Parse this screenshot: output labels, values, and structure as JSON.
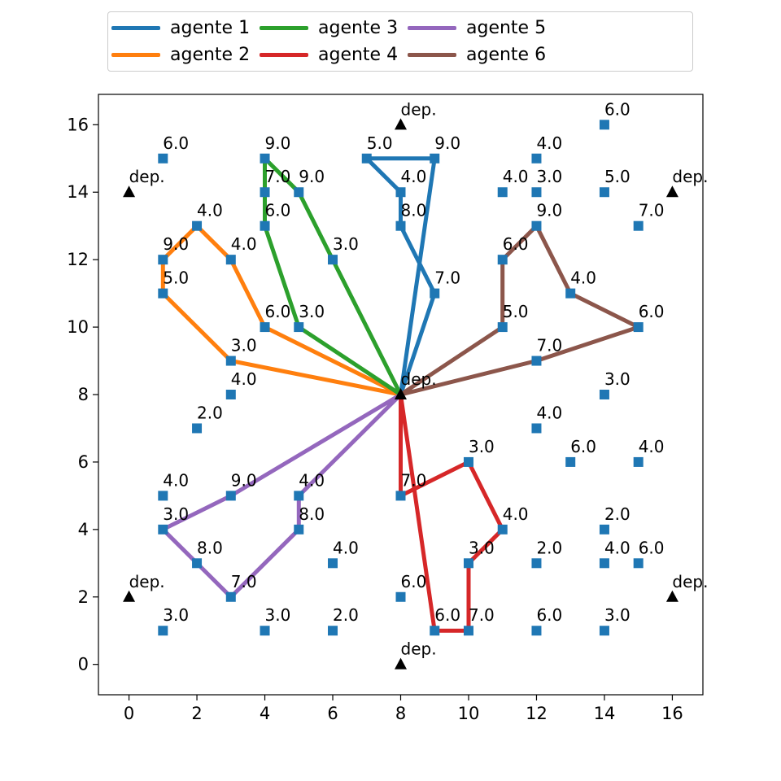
{
  "chart_data": {
    "type": "scatter",
    "title": "",
    "xlabel": "",
    "ylabel": "",
    "xlim": [
      -0.9,
      16.9
    ],
    "ylim": [
      -0.9,
      16.9
    ],
    "x_ticks": [
      0,
      2,
      4,
      6,
      8,
      10,
      12,
      14,
      16
    ],
    "y_ticks": [
      0,
      2,
      4,
      6,
      8,
      10,
      12,
      14,
      16
    ],
    "grid": false,
    "legend_position": "top-center",
    "depots": [
      {
        "x": 8,
        "y": 16,
        "label": "dep."
      },
      {
        "x": 0,
        "y": 14,
        "label": "dep."
      },
      {
        "x": 16,
        "y": 14,
        "label": "dep."
      },
      {
        "x": 8,
        "y": 8,
        "label": "dep."
      },
      {
        "x": 0,
        "y": 2,
        "label": "dep."
      },
      {
        "x": 16,
        "y": 2,
        "label": "dep."
      },
      {
        "x": 8,
        "y": 0,
        "label": "dep."
      }
    ],
    "customers": [
      {
        "x": 14,
        "y": 16,
        "label": "6.0"
      },
      {
        "x": 1,
        "y": 15,
        "label": "6.0"
      },
      {
        "x": 4,
        "y": 15,
        "label": "9.0"
      },
      {
        "x": 7,
        "y": 15,
        "label": "5.0"
      },
      {
        "x": 9,
        "y": 15,
        "label": "9.0"
      },
      {
        "x": 12,
        "y": 15,
        "label": "4.0"
      },
      {
        "x": 4,
        "y": 14,
        "label": "7.0"
      },
      {
        "x": 5,
        "y": 14,
        "label": "9.0"
      },
      {
        "x": 8,
        "y": 14,
        "label": "4.0"
      },
      {
        "x": 11,
        "y": 14,
        "label": "4.0"
      },
      {
        "x": 12,
        "y": 14,
        "label": "3.0"
      },
      {
        "x": 14,
        "y": 14,
        "label": "5.0"
      },
      {
        "x": 2,
        "y": 13,
        "label": "4.0"
      },
      {
        "x": 4,
        "y": 13,
        "label": "6.0"
      },
      {
        "x": 8,
        "y": 13,
        "label": "8.0"
      },
      {
        "x": 12,
        "y": 13,
        "label": "9.0"
      },
      {
        "x": 15,
        "y": 13,
        "label": "7.0"
      },
      {
        "x": 1,
        "y": 12,
        "label": "9.0"
      },
      {
        "x": 3,
        "y": 12,
        "label": "4.0"
      },
      {
        "x": 6,
        "y": 12,
        "label": "3.0"
      },
      {
        "x": 11,
        "y": 12,
        "label": "6.0"
      },
      {
        "x": 1,
        "y": 11,
        "label": "5.0"
      },
      {
        "x": 9,
        "y": 11,
        "label": "7.0"
      },
      {
        "x": 13,
        "y": 11,
        "label": "4.0"
      },
      {
        "x": 4,
        "y": 10,
        "label": "6.0"
      },
      {
        "x": 5,
        "y": 10,
        "label": "3.0"
      },
      {
        "x": 11,
        "y": 10,
        "label": "5.0"
      },
      {
        "x": 15,
        "y": 10,
        "label": "6.0"
      },
      {
        "x": 3,
        "y": 9,
        "label": "3.0"
      },
      {
        "x": 12,
        "y": 9,
        "label": "7.0"
      },
      {
        "x": 3,
        "y": 8,
        "label": "4.0"
      },
      {
        "x": 14,
        "y": 8,
        "label": "3.0"
      },
      {
        "x": 2,
        "y": 7,
        "label": "2.0"
      },
      {
        "x": 12,
        "y": 7,
        "label": "4.0"
      },
      {
        "x": 10,
        "y": 6,
        "label": "3.0"
      },
      {
        "x": 13,
        "y": 6,
        "label": "6.0"
      },
      {
        "x": 15,
        "y": 6,
        "label": "4.0"
      },
      {
        "x": 1,
        "y": 5,
        "label": "4.0"
      },
      {
        "x": 3,
        "y": 5,
        "label": "9.0"
      },
      {
        "x": 5,
        "y": 5,
        "label": "4.0"
      },
      {
        "x": 8,
        "y": 5,
        "label": "7.0"
      },
      {
        "x": 1,
        "y": 4,
        "label": "3.0"
      },
      {
        "x": 5,
        "y": 4,
        "label": "8.0"
      },
      {
        "x": 11,
        "y": 4,
        "label": "4.0"
      },
      {
        "x": 14,
        "y": 4,
        "label": "2.0"
      },
      {
        "x": 2,
        "y": 3,
        "label": "8.0"
      },
      {
        "x": 6,
        "y": 3,
        "label": "4.0"
      },
      {
        "x": 10,
        "y": 3,
        "label": "3.0"
      },
      {
        "x": 12,
        "y": 3,
        "label": "2.0"
      },
      {
        "x": 14,
        "y": 3,
        "label": "4.0"
      },
      {
        "x": 15,
        "y": 3,
        "label": "6.0"
      },
      {
        "x": 3,
        "y": 2,
        "label": "7.0"
      },
      {
        "x": 8,
        "y": 2,
        "label": "6.0"
      },
      {
        "x": 1,
        "y": 1,
        "label": "3.0"
      },
      {
        "x": 4,
        "y": 1,
        "label": "3.0"
      },
      {
        "x": 6,
        "y": 1,
        "label": "2.0"
      },
      {
        "x": 9,
        "y": 1,
        "label": "6.0"
      },
      {
        "x": 10,
        "y": 1,
        "label": "7.0"
      },
      {
        "x": 12,
        "y": 1,
        "label": "6.0"
      },
      {
        "x": 14,
        "y": 1,
        "label": "3.0"
      }
    ],
    "marker_colors": {
      "customer": "#1f77b4",
      "depot": "#000000"
    },
    "series": [
      {
        "name": "agente 1",
        "color": "#1f77b4",
        "points": [
          [
            8,
            8
          ],
          [
            9,
            11
          ],
          [
            8,
            13
          ],
          [
            8,
            14
          ],
          [
            7,
            15
          ],
          [
            9,
            15
          ],
          [
            8,
            8
          ]
        ]
      },
      {
        "name": "agente 2",
        "color": "#ff7f0e",
        "points": [
          [
            8,
            8
          ],
          [
            4,
            10
          ],
          [
            3,
            12
          ],
          [
            2,
            13
          ],
          [
            1,
            12
          ],
          [
            1,
            11
          ],
          [
            3,
            9
          ],
          [
            8,
            8
          ]
        ]
      },
      {
        "name": "agente 3",
        "color": "#2ca02c",
        "points": [
          [
            8,
            8
          ],
          [
            5,
            10
          ],
          [
            4,
            13
          ],
          [
            4,
            14
          ],
          [
            4,
            15
          ],
          [
            5,
            14
          ],
          [
            6,
            12
          ],
          [
            8,
            8
          ]
        ]
      },
      {
        "name": "agente 4",
        "color": "#d62728",
        "points": [
          [
            8,
            8
          ],
          [
            8,
            5
          ],
          [
            10,
            6
          ],
          [
            11,
            4
          ],
          [
            10,
            3
          ],
          [
            10,
            1
          ],
          [
            9,
            1
          ],
          [
            8,
            8
          ]
        ]
      },
      {
        "name": "agente 5",
        "color": "#9467bd",
        "points": [
          [
            8,
            8
          ],
          [
            5,
            5
          ],
          [
            5,
            4
          ],
          [
            3,
            2
          ],
          [
            2,
            3
          ],
          [
            1,
            4
          ],
          [
            3,
            5
          ],
          [
            8,
            8
          ]
        ]
      },
      {
        "name": "agente 6",
        "color": "#8c564b",
        "points": [
          [
            8,
            8
          ],
          [
            11,
            10
          ],
          [
            11,
            12
          ],
          [
            12,
            13
          ],
          [
            13,
            11
          ],
          [
            15,
            10
          ],
          [
            12,
            9
          ],
          [
            8,
            8
          ]
        ]
      }
    ]
  }
}
